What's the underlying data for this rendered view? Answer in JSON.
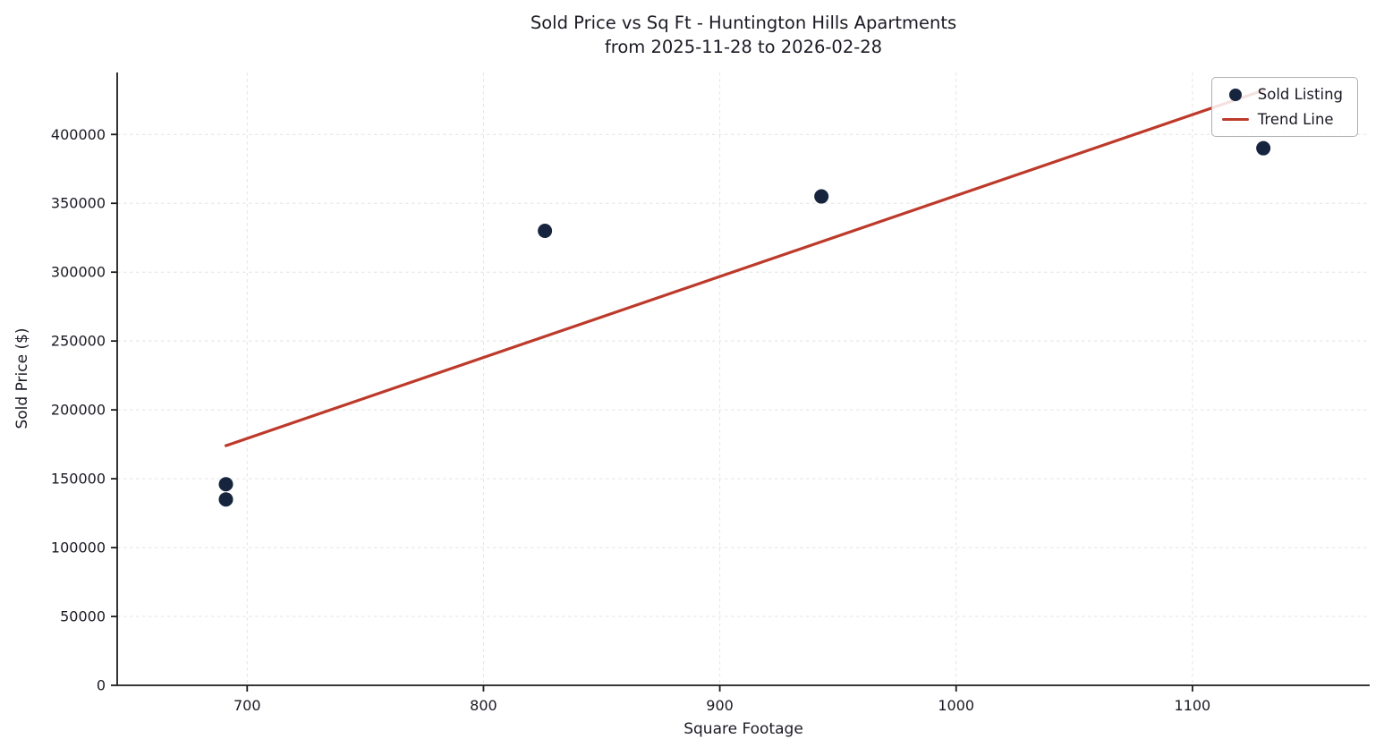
{
  "chart_data": {
    "type": "scatter",
    "title": "Sold Price vs Sq Ft - Huntington Hills Apartments",
    "subtitle": "from 2025-11-28 to 2026-02-28",
    "xlabel": "Square Footage",
    "ylabel": "Sold Price ($)",
    "xlim": [
      645,
      1175
    ],
    "ylim": [
      0,
      445000
    ],
    "xticks": [
      700,
      800,
      900,
      1000,
      1100
    ],
    "yticks": [
      0,
      50000,
      100000,
      150000,
      200000,
      250000,
      300000,
      350000,
      400000
    ],
    "grid": true,
    "legend_position": "upper right",
    "series": [
      {
        "name": "Sold Listing",
        "type": "scatter",
        "color": "#16243d",
        "marker": "circle",
        "points": [
          {
            "x": 691,
            "y": 146000
          },
          {
            "x": 691,
            "y": 135000
          },
          {
            "x": 826,
            "y": 330000
          },
          {
            "x": 943,
            "y": 355000
          },
          {
            "x": 1130,
            "y": 390000
          }
        ]
      },
      {
        "name": "Trend Line",
        "type": "line",
        "color": "#bd3a2b",
        "points": [
          {
            "x": 691,
            "y": 174000
          },
          {
            "x": 1130,
            "y": 432000
          }
        ]
      }
    ]
  }
}
